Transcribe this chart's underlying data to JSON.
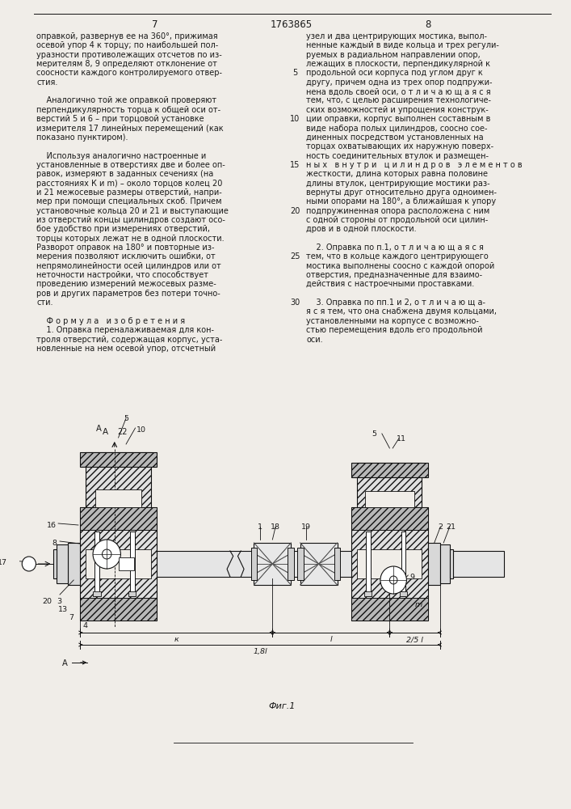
{
  "bg_color": "#f0ede8",
  "text_color": "#1a1a1a",
  "page_left": "7",
  "page_center": "1763865",
  "page_right": "8",
  "fig_caption": "Фиг.1",
  "left_col": [
    "оправкой, развернув ее на 360°, прижимая",
    "осевой упор 4 к торцу; по наибольшей пол-",
    "уразности противолежащих отсчетов по из-",
    "мерителям 8, 9 определяют отклонение от",
    "соосности каждого контролируемого отвер-",
    "стия.",
    " ",
    "    Аналогично той же оправкой проверяют",
    "перпендикулярность торца к общей оси от-",
    "верстий 5 и 6 – при торцовой установке",
    "измерителя 17 линейных перемещений (как",
    "показано пунктиром).",
    " ",
    "    Используя аналогично настроенные и",
    "установленные в отверстиях две и более оп-",
    "равок, измеряют в заданных сечениях (на",
    "расстояниях К и m) – около торцов колец 20",
    "и 21 межосевые размеры отверстий, напри-",
    "мер при помощи специальных скоб. Причем",
    "установочные кольца 20 и 21 и выступающие",
    "из отверстий концы цилиндров создают осо-",
    "бое удобство при измерениях отверстий,",
    "торцы которых лежат не в одной плоскости.",
    "Разворот оправок на 180° и повторные из-",
    "мерения позволяют исключить ошибки, от",
    "непрямолинейности осей цилиндров или от",
    "неточности настройки, что способствует",
    "проведению измерений межосевых разме-",
    "ров и других параметров без потери точно-",
    "сти.",
    " ",
    "    Ф о р м у л а   и з о б р е т е н и я",
    "    1. Оправка переналаживаемая для кон-",
    "троля отверстий, содержащая корпус, уста-",
    "новленные на нем осевой упор, отсчетный"
  ],
  "right_col": [
    "узел и два центрирующих мостика, выпол-",
    "ненные каждый в виде кольца и трех регули-",
    "руемых в радиальном направлении опор,",
    "лежащих в плоскости, перпендикулярной к",
    "продольной оси корпуса под углом друг к",
    "другу, причем одна из трех опор подпружи-",
    "нена вдоль своей оси, о т л и ч а ю щ а я с я",
    "тем, что, с целью расширения технологиче-",
    "ских возможностей и упрощения конструк-",
    "ции оправки, корпус выполнен составным в",
    "виде набора полых цилиндров, соосно сое-",
    "диненных посредством установленных на",
    "торцах охватывающих их наружную поверх-",
    "ность соединительных втулок и размещен-",
    "н ы х   в н у т р и   ц и л и н д р о в   э л е м е н т о в",
    "жесткости, длина которых равна половине",
    "длины втулок, центрирующие мостики раз-",
    "вернуты друг относительно друга одноимен-",
    "ными опорами на 180°, а ближайшая к упору",
    "подпружиненная опора расположена с ним",
    "с одной стороны от продольной оси цилин-",
    "дров и в одной плоскости.",
    " ",
    "    2. Оправка по п.1, о т л и ч а ю щ а я с я",
    "тем, что в кольце каждого центрирующего",
    "мостика выполнены соосно с каждой опорой",
    "отверстия, предназначенные для взаимо-",
    "действия с настроечными проставками.",
    " ",
    "    3. Оправка по пп.1 и 2, о т л и ч а ю щ а-",
    "я с я тем, что она снабжена двумя кольцами,",
    "установленными на корпусе с возможно-",
    "стью перемещения вдоль его продольной",
    "оси."
  ],
  "line_numbers": [
    5,
    10,
    15,
    20,
    25,
    30
  ]
}
